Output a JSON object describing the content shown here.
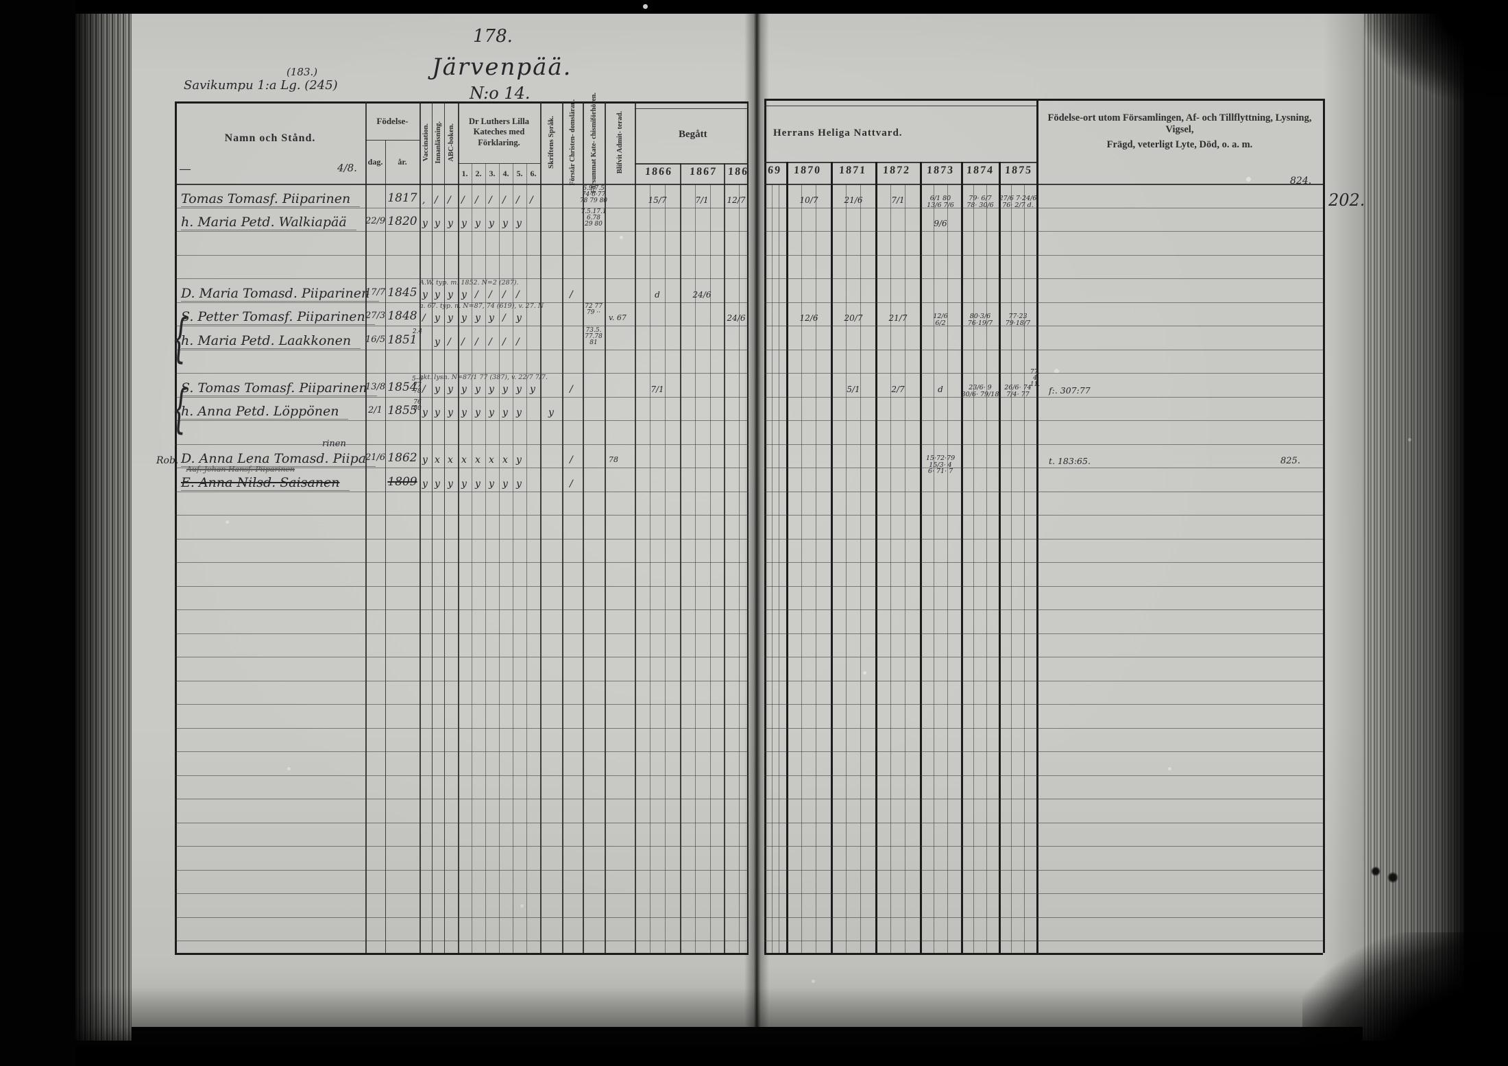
{
  "titles": {
    "folio_number": "178.",
    "village_name": "Järvenpää.",
    "house_number": "N:o 14.",
    "margin_note_over": "(183.)",
    "margin_note": "Savikumpu 1:a Lg. (245)",
    "margin_row_note": "Rob.",
    "corner_number_top": "824.",
    "corner_number_bottom": "825.",
    "page_number": "202."
  },
  "left_header": {
    "name_col": "Namn och Stånd.",
    "name_dash": "—",
    "name_fraction": "4/8.",
    "birth": "Födelse-",
    "birth_day": "dag.",
    "birth_year": "år.",
    "vaccination": "Vaccination.",
    "reading": "Innanläsning.",
    "abc_book": "ABC-boken.",
    "catechism_title": "Dr Luthers Lilla Kateches med Förklaring.",
    "catechism_cols": [
      "1.",
      "2.",
      "3.",
      "4.",
      "5.",
      "6."
    ],
    "script_lang": "Skriftens Språk.",
    "understands": "Förstår Christen- domsläran.",
    "missed_exam": "Försummat Kate- chismiförhören.",
    "admitted": "Blifvit Admit- terad.",
    "communion_left": "Begått",
    "years_left": [
      "1866",
      "1867",
      "186"
    ]
  },
  "right_header": {
    "communion_right": "Herrans Heliga Nattvard.",
    "years_right": [
      "69",
      "1870",
      "1871",
      "1872",
      "1873",
      "1874",
      "1875"
    ],
    "notes_col_line1": "Födelse-ort utom Församlingen, Af- och Tillflyttning, Lysning, Vigsel,",
    "notes_col_line2": "Frägd, veterligt Lyte, Död, o. a. m."
  },
  "rows": [
    {
      "line": 1,
      "name": "Tomas Tomasf. Piiparinen",
      "day": "",
      "year": "1817",
      "marks": [
        ",",
        "/",
        "/",
        "/",
        "/",
        "/",
        "/",
        "/",
        "/"
      ],
      "forsummat": "6.9.7.5\n74·6·77\n78 79 80",
      "communion": {
        "1866": "15/7",
        "1867": "7/1",
        "1868": "12/7",
        "1870": "10/7",
        "1871": "21/6",
        "1872": "7/1",
        "1873": "6/1 80\n13/6 7/6",
        "1874": "79· 6/7\n78· 30/6",
        "1875": "27/6 7·24/6\n76· 2/7 d."
      }
    },
    {
      "line": 2,
      "name": "h. Maria Petd. Walkiapää",
      "day": "22/9",
      "year": "1820",
      "marks": [
        "y",
        "y",
        "y",
        "y",
        "y",
        "y",
        "y",
        "y"
      ],
      "forsummat": "7.5.17.1\n6.78\n29 80",
      "communion": {
        "1873": "9/6"
      }
    },
    {
      "line": 5,
      "name": "D. Maria Tomasd. Piiparinen",
      "day": "17/7",
      "year": "1845",
      "overnote": "A.W. typ. m. 1852. N=2 (287).",
      "marks": [
        "y",
        "y",
        "y",
        "y",
        "/",
        "/",
        "/",
        "/"
      ],
      "forstar": "/",
      "communion": {
        "1866": "d",
        "1867": "24/6"
      }
    },
    {
      "line": 6,
      "name": "S. Petter Tomasf. Piiparinen",
      "day": "27/3",
      "year": "1848",
      "overnote": "a. 67. typ. n. N=87, 74 (619), v. 27. N",
      "marks": [
        "/",
        "y",
        "y",
        "y",
        "y",
        "y",
        "/",
        "y"
      ],
      "forsummat": "72 77\n79 ··",
      "admit": "v. 67",
      "communion": {
        "1868": "24/6",
        "1870": "12/6",
        "1871": "20/7",
        "1872": "21/7",
        "1873": "12/6\n6/2",
        "1874": "80·3/6\n76·19/7",
        "1875": "77·23\n79·18/7"
      }
    },
    {
      "line": 7,
      "name": "h. Maria Petd. Laakkonen",
      "day": "16/5",
      "year": "1851",
      "vaccnote": "2.4",
      "marks": [
        "",
        "y",
        "/",
        "/",
        "/",
        "/",
        "/",
        "/"
      ],
      "forsummat": "73.5.\n77.78\n81"
    },
    {
      "line": 9,
      "name": "S. Tomas Tomasf. Piiparinen",
      "day": "13/8",
      "year": "1854",
      "overnote": "akt. lysn. N=87/1 77 (387), v. 22/7 7/7.",
      "vaccnote": "5–6\n77\n78",
      "marks": [
        "/",
        "y",
        "y",
        "y",
        "y",
        "y",
        "y",
        "y",
        "y"
      ],
      "forstar": "/",
      "communion": {
        "1866": "7/1",
        "1871": "5/1",
        "1872": "2/7",
        "1873": "d",
        "1874": "23/6· 9\n30/6· 79/18",
        "1875": "26/6· 74\n7/4· 77"
      },
      "edge_stack": "77.\n4\n11.",
      "note": "f:. 307:77"
    },
    {
      "line": 10,
      "name": "h. Anna Petd. Löppönen",
      "day": "2/1",
      "year": "1855",
      "vaccnote": "76\n80",
      "marks": [
        "y",
        "y",
        "y",
        "y",
        "y",
        "y",
        "y",
        "y"
      ],
      "skrift": "y"
    },
    {
      "line": 12,
      "name": "D. Anna Lena Tomasd. Piipa",
      "insert": "rinen",
      "margin": "Rob.",
      "subnote": "Auf. Johan Hansf. Piiparinen",
      "day": "21/6",
      "year": "1862",
      "marks": [
        "y",
        "x",
        "x",
        "x",
        "x",
        "x",
        "x",
        "y"
      ],
      "forstar": "/",
      "admit": "78",
      "communion": {
        "1873": "15·72·79\n15/3· 4\n6· 71· 7"
      },
      "note": "t. 183:65.",
      "note_right": "825."
    },
    {
      "line": 13,
      "name": "E. Anna Nilsd. Saisanen",
      "day": "",
      "year": "1809",
      "struck": true,
      "marks": [
        "y",
        "y",
        "y",
        "y",
        "y",
        "y",
        "y",
        "y"
      ],
      "forstar": "/"
    }
  ]
}
